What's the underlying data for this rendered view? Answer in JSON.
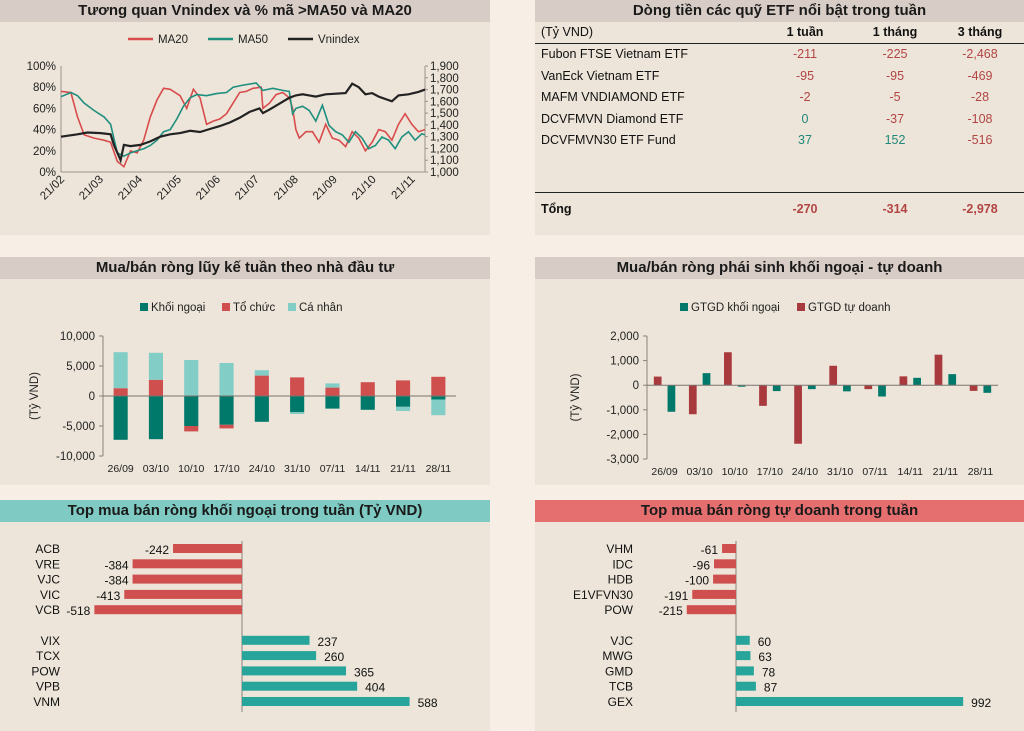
{
  "colors": {
    "ma20": "#d84c4c",
    "ma50": "#1f8f7f",
    "vnindex": "#222222",
    "khoi_ngoai": "#00796b",
    "to_chuc": "#cf4f4f",
    "ca_nhan": "#82cdc6",
    "gtgd_khoi_ngoai": "#00796b",
    "gtgd_tu_doanh": "#a83a3e",
    "neg_bar": "#cf4f4f",
    "pos_bar": "#27a59a",
    "neg_text": "#b24444",
    "pos_text": "#22877a"
  },
  "etf_table": {
    "title": "Dòng tiền các quỹ ETF nổi bật trong tuần",
    "unit": "(Tỷ VND)",
    "headers": [
      "1 tuần",
      "1 tháng",
      "3 tháng"
    ],
    "rows": [
      {
        "name": "Fubon FTSE Vietnam ETF",
        "w1": "-211",
        "m1": "-225",
        "m3": "-2,468"
      },
      {
        "name": "VanEck Vietnam ETF",
        "w1": "-95",
        "m1": "-95",
        "m3": "-469"
      },
      {
        "name": "MAFM VNDIAMOND ETF",
        "w1": "-2",
        "m1": "-5",
        "m3": "-28"
      },
      {
        "name": "DCVFMVN Diamond ETF",
        "w1": "0",
        "m1": "-37",
        "m3": "-108"
      },
      {
        "name": "DCVFMVN30 ETF Fund",
        "w1": "37",
        "m1": "152",
        "m3": "-516"
      }
    ],
    "total": {
      "name": "Tổng",
      "w1": "-270",
      "m1": "-314",
      "m3": "-2,978"
    }
  },
  "chart_data": [
    {
      "type": "line",
      "title": "Tương quan Vnindex và % mã >MA50 và MA20",
      "legend": [
        "MA20",
        "MA50",
        "Vnindex"
      ],
      "legend_position": "top",
      "x_ticks": [
        "21/02",
        "21/03",
        "21/04",
        "21/05",
        "21/06",
        "21/07",
        "21/08",
        "21/09",
        "21/10",
        "21/11"
      ],
      "y_left": {
        "ticks": [
          "0%",
          "20%",
          "40%",
          "60%",
          "80%",
          "100%"
        ],
        "range": [
          0,
          100
        ]
      },
      "y_right": {
        "ticks": [
          "1,000",
          "1,100",
          "1,200",
          "1,300",
          "1,400",
          "1,500",
          "1,600",
          "1,700",
          "1,800",
          "1,900"
        ],
        "range": [
          1000,
          1900
        ]
      },
      "x_range": [
        0,
        9.5
      ],
      "series": [
        {
          "name": "MA20",
          "axis": "left",
          "points": [
            [
              0,
              76
            ],
            [
              0.3,
              75
            ],
            [
              0.5,
              52
            ],
            [
              0.7,
              35
            ],
            [
              1,
              32
            ],
            [
              1.3,
              30
            ],
            [
              1.5,
              28
            ],
            [
              1.7,
              10
            ],
            [
              1.9,
              5
            ],
            [
              2.1,
              20
            ],
            [
              2.3,
              18
            ],
            [
              2.5,
              30
            ],
            [
              2.7,
              52
            ],
            [
              2.9,
              68
            ],
            [
              3.1,
              79
            ],
            [
              3.3,
              78
            ],
            [
              3.6,
              72
            ],
            [
              3.8,
              60
            ],
            [
              4.0,
              78
            ],
            [
              4.2,
              70
            ],
            [
              4.4,
              45
            ],
            [
              4.6,
              48
            ],
            [
              4.8,
              50
            ],
            [
              5.0,
              55
            ],
            [
              5.2,
              65
            ],
            [
              5.4,
              75
            ],
            [
              5.6,
              76
            ],
            [
              5.8,
              79
            ],
            [
              6.05,
              80
            ],
            [
              6.1,
              60
            ],
            [
              6.3,
              65
            ],
            [
              6.5,
              73
            ],
            [
              6.7,
              75
            ],
            [
              6.9,
              70
            ],
            [
              7.0,
              60
            ],
            [
              7.1,
              40
            ],
            [
              7.2,
              32
            ],
            [
              7.4,
              38
            ],
            [
              7.6,
              38
            ],
            [
              7.8,
              28
            ],
            [
              8.0,
              45
            ],
            [
              8.2,
              32
            ],
            [
              8.4,
              30
            ],
            [
              8.6,
              24
            ],
            [
              8.8,
              38
            ],
            [
              9.0,
              32
            ],
            [
              9.2,
              20
            ],
            [
              9.4,
              28
            ],
            [
              9.6,
              40
            ],
            [
              9.8,
              38
            ],
            [
              10.0,
              30
            ],
            [
              10.2,
              45
            ],
            [
              10.4,
              55
            ],
            [
              10.6,
              45
            ],
            [
              10.8,
              38
            ],
            [
              11.0,
              40
            ]
          ]
        },
        {
          "name": "MA50",
          "axis": "left",
          "points": [
            [
              0,
              71
            ],
            [
              0.3,
              75
            ],
            [
              0.5,
              72
            ],
            [
              0.7,
              65
            ],
            [
              1,
              58
            ],
            [
              1.3,
              52
            ],
            [
              1.5,
              45
            ],
            [
              1.7,
              18
            ],
            [
              1.9,
              15
            ],
            [
              2.1,
              18
            ],
            [
              2.3,
              20
            ],
            [
              2.5,
              22
            ],
            [
              2.7,
              25
            ],
            [
              2.9,
              30
            ],
            [
              3.1,
              38
            ],
            [
              3.3,
              40
            ],
            [
              3.5,
              50
            ],
            [
              3.7,
              62
            ],
            [
              3.9,
              70
            ],
            [
              4.1,
              73
            ],
            [
              4.4,
              72
            ],
            [
              4.7,
              74
            ],
            [
              5.0,
              75
            ],
            [
              5.2,
              80
            ],
            [
              5.5,
              82
            ],
            [
              5.9,
              84
            ],
            [
              6.1,
              77
            ],
            [
              6.4,
              79
            ],
            [
              6.7,
              77
            ],
            [
              6.9,
              76
            ],
            [
              7.0,
              55
            ],
            [
              7.1,
              60
            ],
            [
              7.3,
              62
            ],
            [
              7.5,
              58
            ],
            [
              7.7,
              48
            ],
            [
              7.9,
              63
            ],
            [
              8.1,
              44
            ],
            [
              8.3,
              38
            ],
            [
              8.5,
              35
            ],
            [
              8.7,
              28
            ],
            [
              8.9,
              38
            ],
            [
              9.1,
              32
            ],
            [
              9.3,
              22
            ],
            [
              9.5,
              25
            ],
            [
              9.7,
              33
            ],
            [
              9.9,
              30
            ],
            [
              10.1,
              22
            ],
            [
              10.3,
              33
            ],
            [
              10.5,
              38
            ],
            [
              10.7,
              30
            ],
            [
              10.9,
              36
            ],
            [
              11.0,
              35
            ]
          ]
        },
        {
          "name": "Vnindex",
          "axis": "right",
          "points": [
            [
              0,
              1300
            ],
            [
              0.5,
              1320
            ],
            [
              0.8,
              1335
            ],
            [
              1.2,
              1330
            ],
            [
              1.5,
              1320
            ],
            [
              1.6,
              1230
            ],
            [
              1.8,
              1100
            ],
            [
              1.9,
              1230
            ],
            [
              2.1,
              1220
            ],
            [
              2.4,
              1230
            ],
            [
              2.7,
              1260
            ],
            [
              3.0,
              1300
            ],
            [
              3.3,
              1320
            ],
            [
              3.6,
              1330
            ],
            [
              3.9,
              1350
            ],
            [
              4.2,
              1340
            ],
            [
              4.5,
              1365
            ],
            [
              4.8,
              1390
            ],
            [
              5.1,
              1420
            ],
            [
              5.4,
              1460
            ],
            [
              5.7,
              1510
            ],
            [
              6.0,
              1540
            ],
            [
              6.1,
              1500
            ],
            [
              6.3,
              1530
            ],
            [
              6.6,
              1580
            ],
            [
              6.9,
              1630
            ],
            [
              7.1,
              1650
            ],
            [
              7.3,
              1660
            ],
            [
              7.5,
              1650
            ],
            [
              7.7,
              1640
            ],
            [
              8.0,
              1660
            ],
            [
              8.3,
              1665
            ],
            [
              8.6,
              1670
            ],
            [
              8.8,
              1750
            ],
            [
              9.0,
              1720
            ],
            [
              9.2,
              1660
            ],
            [
              9.4,
              1670
            ],
            [
              9.6,
              1640
            ],
            [
              9.8,
              1620
            ],
            [
              10.0,
              1600
            ],
            [
              10.2,
              1650
            ],
            [
              10.5,
              1660
            ],
            [
              10.8,
              1680
            ],
            [
              11.0,
              1700
            ]
          ]
        }
      ]
    },
    {
      "type": "bar",
      "stacked": true,
      "title": "Mua/bán ròng lũy kế tuần theo nhà đầu tư",
      "ylabel": "(Tỷ VND)",
      "legend_position": "top",
      "categories": [
        "26/09",
        "03/10",
        "10/10",
        "17/10",
        "24/10",
        "31/10",
        "07/11",
        "14/11",
        "21/11",
        "28/11"
      ],
      "y_ticks": [
        "-10,000",
        "-5,000",
        "0",
        "5,000",
        "10,000"
      ],
      "ylim": [
        -10000,
        10000
      ],
      "series": [
        {
          "name": "Khối ngoại",
          "values": [
            -7300,
            -7200,
            -5000,
            -4800,
            -4300,
            -2700,
            -2100,
            -2300,
            -1800,
            -600
          ]
        },
        {
          "name": "Tổ chức",
          "values": [
            1300,
            2700,
            -900,
            -600,
            3400,
            3100,
            1400,
            2300,
            2600,
            3200
          ]
        },
        {
          "name": "Cá nhân",
          "values": [
            6000,
            4500,
            6000,
            5500,
            900,
            -300,
            700,
            0,
            -700,
            -2600
          ]
        }
      ]
    },
    {
      "type": "bar",
      "title": "Mua/bán ròng phái sinh khối ngoại - tự doanh",
      "ylabel": "(Tỷ VND)",
      "legend_position": "top",
      "categories": [
        "26/09",
        "03/10",
        "10/10",
        "17/10",
        "24/10",
        "31/10",
        "07/11",
        "14/11",
        "21/11",
        "28/11"
      ],
      "y_ticks": [
        "-3,000",
        "-2,000",
        "-1,000",
        "0",
        "1,000",
        "2,000"
      ],
      "ylim": [
        -3000,
        2000
      ],
      "series": [
        {
          "name": "GTGD khối ngoại",
          "values": [
            -1080,
            490,
            -60,
            -240,
            -160,
            -250,
            -460,
            300,
            450,
            -310
          ]
        },
        {
          "name": "GTGD tự doanh",
          "values": [
            350,
            -1180,
            1340,
            -840,
            -2380,
            790,
            -160,
            360,
            1240,
            -230
          ]
        }
      ]
    },
    {
      "type": "bar",
      "orientation": "horizontal",
      "title": "Top mua bán ròng khối ngoại trong tuần (Tỷ VND)",
      "categories": [
        "ACB",
        "VRE",
        "VJC",
        "VIC",
        "VCB",
        "VIX",
        "TCX",
        "POW",
        "VPB",
        "VNM"
      ],
      "values": [
        -242,
        -384,
        -384,
        -413,
        -518,
        237,
        260,
        365,
        404,
        588
      ],
      "labels": [
        "-242",
        "-384",
        "-384",
        "-413",
        "-518",
        "237",
        "260",
        "365",
        "404",
        "588"
      ],
      "xlim": [
        -600,
        600
      ]
    },
    {
      "type": "bar",
      "orientation": "horizontal",
      "title": "Top mua bán ròng tự doanh trong tuần",
      "categories": [
        "VHM",
        "IDC",
        "HDB",
        "E1VFVN30",
        "POW",
        "VJC",
        "MWG",
        "GMD",
        "TCB",
        "GEX"
      ],
      "values": [
        -61,
        -96,
        -100,
        -191,
        -215,
        60,
        63,
        78,
        87,
        992
      ],
      "labels": [
        "-61",
        "-96",
        "-100",
        "-191",
        "-215",
        "60",
        "63",
        "78",
        "87",
        "992"
      ],
      "xlim": [
        -300,
        1000
      ]
    }
  ]
}
